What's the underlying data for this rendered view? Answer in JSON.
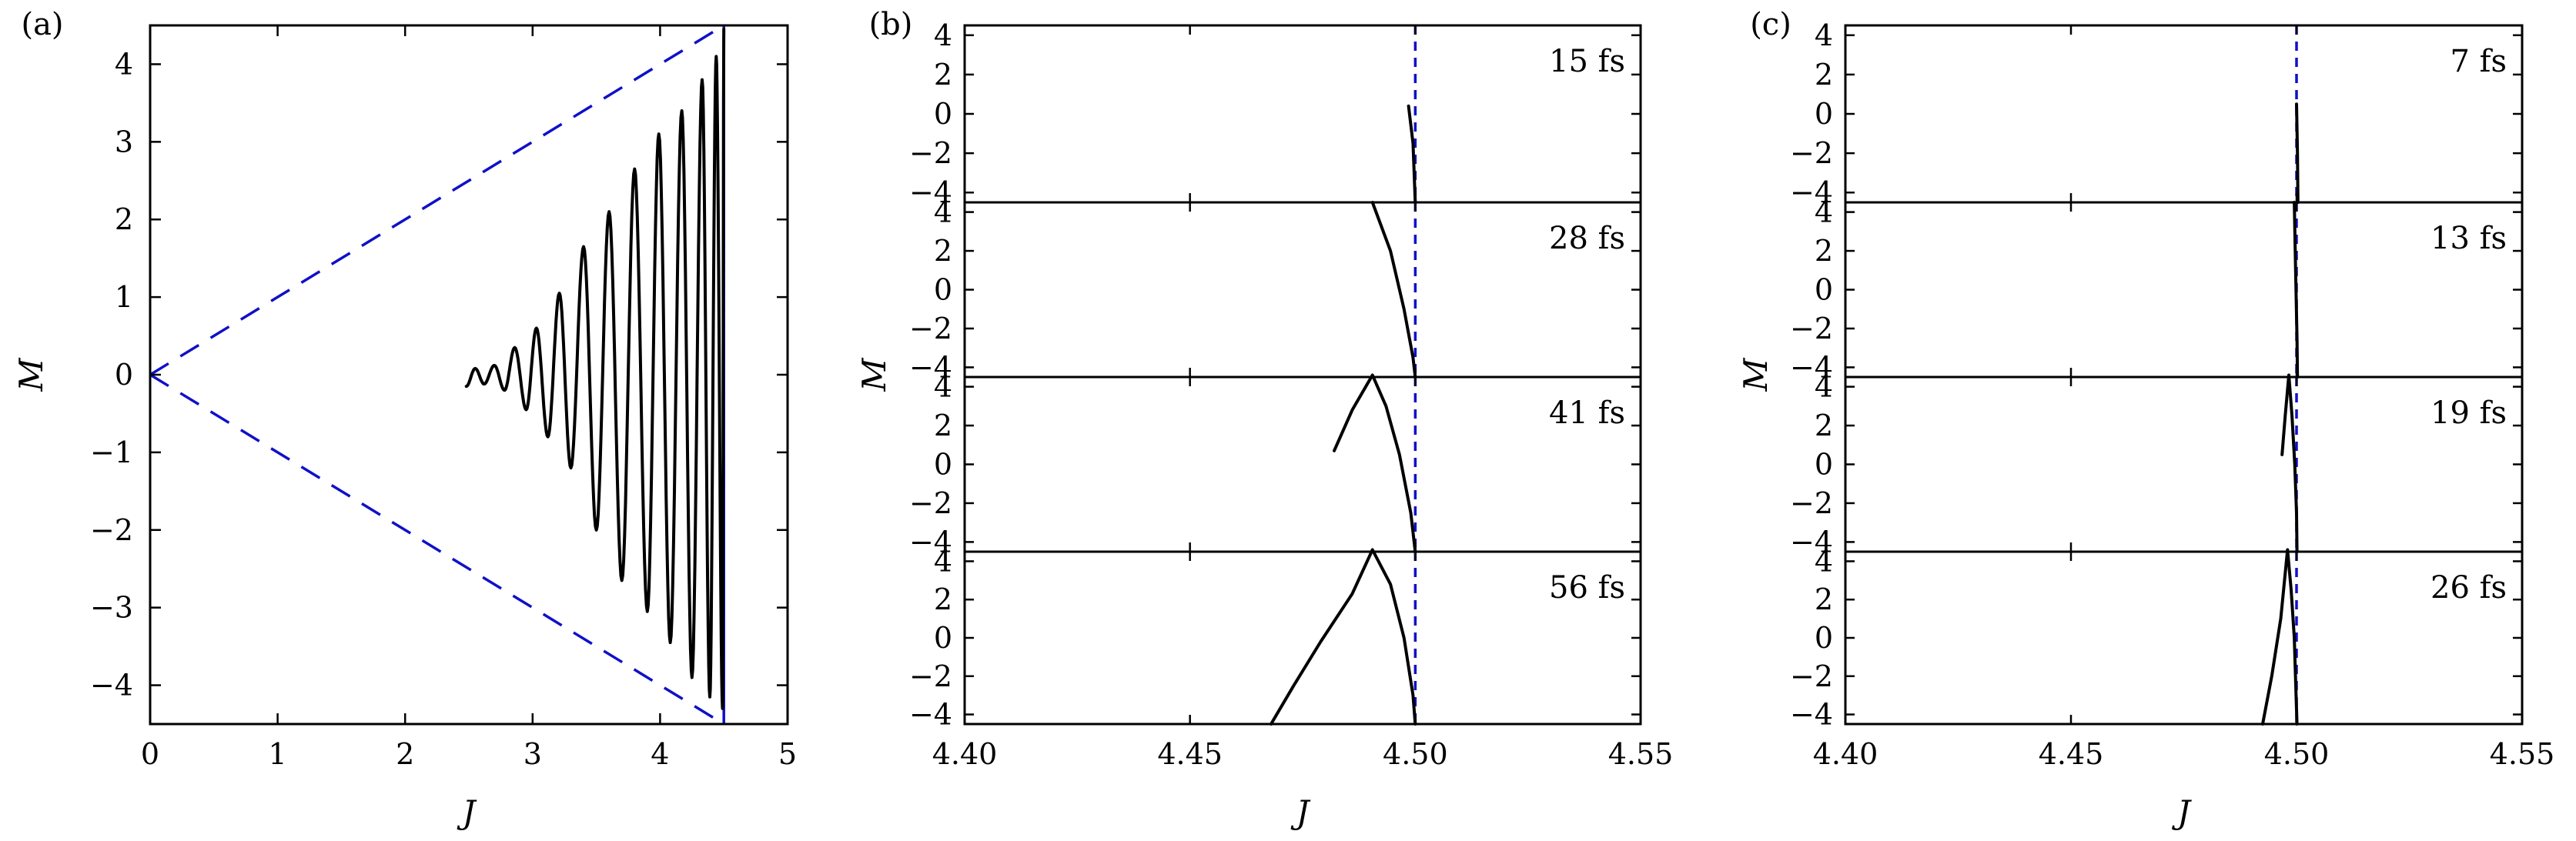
{
  "chart_data": [
    {
      "id": "a",
      "panel_label": "(a)",
      "type": "line",
      "xlabel": "J",
      "ylabel": "M",
      "xlim": [
        0,
        5
      ],
      "ylim": [
        -4.5,
        4.5
      ],
      "xticks": [
        0,
        1,
        2,
        3,
        4,
        5
      ],
      "yticks": [
        -4,
        -3,
        -2,
        -1,
        0,
        1,
        2,
        3,
        4
      ],
      "reference_lines": [
        {
          "style": "dashed",
          "color": "#1010c8",
          "points": [
            [
              0,
              0
            ],
            [
              4.5,
              4.5
            ]
          ]
        },
        {
          "style": "dashed",
          "color": "#1010c8",
          "points": [
            [
              0,
              0
            ],
            [
              4.5,
              -4.5
            ]
          ]
        },
        {
          "style": "solid",
          "color": "#1010c8",
          "points": [
            [
              4.5,
              -4.5
            ],
            [
              4.5,
              4.5
            ]
          ]
        }
      ],
      "peaks": [
        [
          2.55,
          0.08
        ],
        [
          2.62,
          -0.12
        ],
        [
          2.7,
          0.12
        ],
        [
          2.78,
          -0.2
        ],
        [
          2.86,
          0.35
        ],
        [
          2.95,
          -0.45
        ],
        [
          3.03,
          0.6
        ],
        [
          3.12,
          -0.8
        ],
        [
          3.21,
          1.05
        ],
        [
          3.3,
          -1.2
        ],
        [
          3.4,
          1.65
        ],
        [
          3.5,
          -2.0
        ],
        [
          3.6,
          2.1
        ],
        [
          3.7,
          -2.65
        ],
        [
          3.8,
          2.65
        ],
        [
          3.9,
          -3.05
        ],
        [
          3.99,
          3.1
        ],
        [
          4.08,
          -3.45
        ],
        [
          4.17,
          3.4
        ],
        [
          4.25,
          -3.9
        ],
        [
          4.33,
          3.8
        ],
        [
          4.39,
          -4.15
        ],
        [
          4.44,
          4.1
        ],
        [
          4.49,
          -4.3
        ],
        [
          4.5,
          4.45
        ]
      ],
      "start_point": [
        2.48,
        -0.15
      ]
    },
    {
      "id": "b",
      "panel_label": "(b)",
      "type": "line",
      "xlabel": "J",
      "ylabel": "M",
      "xlim": [
        4.4,
        4.55
      ],
      "ylim": [
        -4.5,
        4.5
      ],
      "xticks": [
        4.4,
        4.45,
        4.5,
        4.55
      ],
      "xtick_labels": [
        "4.40",
        "4.45",
        "4.50",
        "4.55"
      ],
      "yticks": [
        -4,
        -2,
        0,
        2,
        4
      ],
      "reference_x": 4.5,
      "subplots": [
        {
          "label": "15 fs",
          "points": [
            [
              4.4985,
              0.4
            ],
            [
              4.4995,
              -1.5
            ],
            [
              4.5,
              -4.5
            ]
          ]
        },
        {
          "label": "28 fs",
          "points": [
            [
              4.4905,
              4.5
            ],
            [
              4.4945,
              2.0
            ],
            [
              4.4975,
              -1.0
            ],
            [
              4.4995,
              -3.5
            ],
            [
              4.5,
              -4.5
            ]
          ]
        },
        {
          "label": "41 fs",
          "points": [
            [
              4.482,
              0.7
            ],
            [
              4.486,
              2.8
            ],
            [
              4.4905,
              4.6
            ],
            [
              4.4935,
              3.0
            ],
            [
              4.4965,
              0.5
            ],
            [
              4.499,
              -2.5
            ],
            [
              4.5,
              -4.5
            ]
          ]
        },
        {
          "label": "56 fs",
          "points": [
            [
              4.468,
              -4.5
            ],
            [
              4.473,
              -2.5
            ],
            [
              4.479,
              -0.2
            ],
            [
              4.486,
              2.3
            ],
            [
              4.4905,
              4.6
            ],
            [
              4.4945,
              2.8
            ],
            [
              4.4975,
              0.0
            ],
            [
              4.4995,
              -3.0
            ],
            [
              4.5,
              -4.5
            ]
          ]
        }
      ]
    },
    {
      "id": "c",
      "panel_label": "(c)",
      "type": "line",
      "xlabel": "J",
      "ylabel": "M",
      "xlim": [
        4.4,
        4.55
      ],
      "ylim": [
        -4.5,
        4.5
      ],
      "xticks": [
        4.4,
        4.45,
        4.5,
        4.55
      ],
      "xtick_labels": [
        "4.40",
        "4.45",
        "4.50",
        "4.55"
      ],
      "yticks": [
        -4,
        -2,
        0,
        2,
        4
      ],
      "reference_x": 4.5,
      "subplots": [
        {
          "label": "7 fs",
          "points": [
            [
              4.5,
              0.5
            ],
            [
              4.5002,
              -2.0
            ],
            [
              4.5003,
              -4.5
            ]
          ]
        },
        {
          "label": "13 fs",
          "points": [
            [
              4.4995,
              4.5
            ],
            [
              4.4998,
              1.0
            ],
            [
              4.5001,
              -2.5
            ],
            [
              4.5002,
              -4.5
            ]
          ]
        },
        {
          "label": "19 fs",
          "points": [
            [
              4.4968,
              0.5
            ],
            [
              4.4975,
              2.5
            ],
            [
              4.4983,
              4.6
            ],
            [
              4.499,
              2.5
            ],
            [
              4.4996,
              0.0
            ],
            [
              4.5,
              -2.5
            ],
            [
              4.5001,
              -4.5
            ]
          ]
        },
        {
          "label": "26 fs",
          "points": [
            [
              4.4925,
              -4.5
            ],
            [
              4.4945,
              -2.0
            ],
            [
              4.4965,
              1.0
            ],
            [
              4.498,
              4.6
            ],
            [
              4.4988,
              2.5
            ],
            [
              4.4995,
              0.0
            ],
            [
              4.4999,
              -3.0
            ],
            [
              4.5001,
              -4.5
            ]
          ]
        }
      ]
    }
  ]
}
